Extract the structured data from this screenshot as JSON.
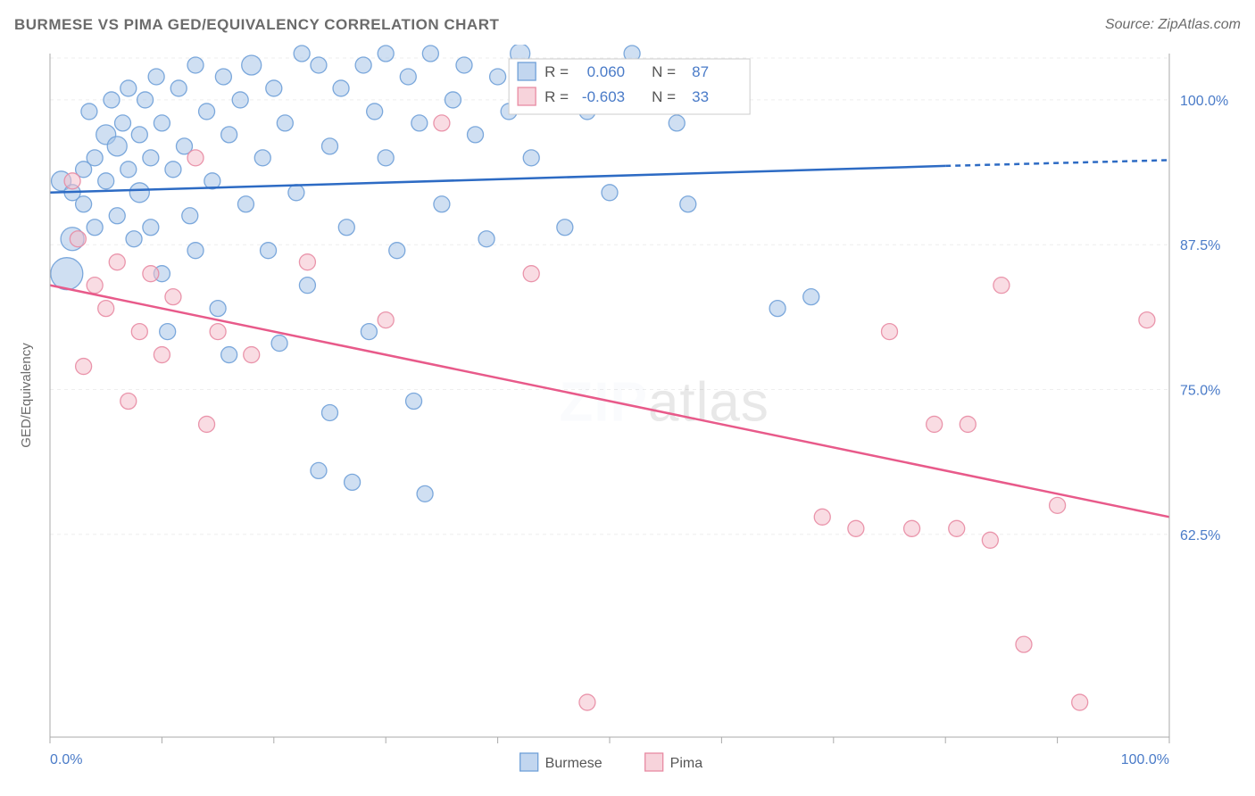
{
  "title": "BURMESE VS PIMA GED/EQUIVALENCY CORRELATION CHART",
  "source": "Source: ZipAtlas.com",
  "watermark_zip": "ZIP",
  "watermark_atlas": "atlas",
  "chart": {
    "type": "scatter",
    "ylabel": "GED/Equivalency",
    "xlim": [
      0,
      100
    ],
    "ylim": [
      45,
      104
    ],
    "xtick_labels": [
      "0.0%",
      "100.0%"
    ],
    "ytick_values": [
      62.5,
      75.0,
      87.5,
      100.0
    ],
    "ytick_labels": [
      "62.5%",
      "75.0%",
      "87.5%",
      "100.0%"
    ],
    "x_minor_ticks": [
      0,
      10,
      20,
      30,
      40,
      50,
      60,
      70,
      80,
      90,
      100
    ],
    "grid_color": "#eeeeee",
    "grid_dash": "4,4",
    "axis_color": "#aaaaaa",
    "background_color": "#ffffff",
    "series": [
      {
        "name": "Burmese",
        "color_fill": "#a8c5e8",
        "color_stroke": "#6fa0d8",
        "fill_opacity": 0.55,
        "stroke_opacity": 0.9,
        "marker_r": 9,
        "trend_color": "#2d6bc4",
        "trend_width": 2.5,
        "trend": {
          "x1": 0,
          "y1": 92,
          "x2_solid": 80,
          "y2_solid": 94.3,
          "x2": 100,
          "y2": 94.8
        },
        "r_value": "0.060",
        "n_value": "87",
        "points": [
          {
            "x": 1,
            "y": 93,
            "r": 11
          },
          {
            "x": 1.5,
            "y": 85,
            "r": 18
          },
          {
            "x": 2,
            "y": 92,
            "r": 9
          },
          {
            "x": 2,
            "y": 88,
            "r": 13
          },
          {
            "x": 3,
            "y": 94,
            "r": 9
          },
          {
            "x": 3,
            "y": 91,
            "r": 9
          },
          {
            "x": 3.5,
            "y": 99,
            "r": 9
          },
          {
            "x": 4,
            "y": 95,
            "r": 9
          },
          {
            "x": 4,
            "y": 89,
            "r": 9
          },
          {
            "x": 5,
            "y": 97,
            "r": 11
          },
          {
            "x": 5,
            "y": 93,
            "r": 9
          },
          {
            "x": 5.5,
            "y": 100,
            "r": 9
          },
          {
            "x": 6,
            "y": 96,
            "r": 11
          },
          {
            "x": 6,
            "y": 90,
            "r": 9
          },
          {
            "x": 6.5,
            "y": 98,
            "r": 9
          },
          {
            "x": 7,
            "y": 94,
            "r": 9
          },
          {
            "x": 7,
            "y": 101,
            "r": 9
          },
          {
            "x": 7.5,
            "y": 88,
            "r": 9
          },
          {
            "x": 8,
            "y": 97,
            "r": 9
          },
          {
            "x": 8,
            "y": 92,
            "r": 11
          },
          {
            "x": 8.5,
            "y": 100,
            "r": 9
          },
          {
            "x": 9,
            "y": 95,
            "r": 9
          },
          {
            "x": 9,
            "y": 89,
            "r": 9
          },
          {
            "x": 9.5,
            "y": 102,
            "r": 9
          },
          {
            "x": 10,
            "y": 98,
            "r": 9
          },
          {
            "x": 10,
            "y": 85,
            "r": 9
          },
          {
            "x": 10.5,
            "y": 80,
            "r": 9
          },
          {
            "x": 11,
            "y": 94,
            "r": 9
          },
          {
            "x": 11.5,
            "y": 101,
            "r": 9
          },
          {
            "x": 12,
            "y": 96,
            "r": 9
          },
          {
            "x": 12.5,
            "y": 90,
            "r": 9
          },
          {
            "x": 13,
            "y": 103,
            "r": 9
          },
          {
            "x": 13,
            "y": 87,
            "r": 9
          },
          {
            "x": 14,
            "y": 99,
            "r": 9
          },
          {
            "x": 14.5,
            "y": 93,
            "r": 9
          },
          {
            "x": 15,
            "y": 82,
            "r": 9
          },
          {
            "x": 15.5,
            "y": 102,
            "r": 9
          },
          {
            "x": 16,
            "y": 97,
            "r": 9
          },
          {
            "x": 16,
            "y": 78,
            "r": 9
          },
          {
            "x": 17,
            "y": 100,
            "r": 9
          },
          {
            "x": 17.5,
            "y": 91,
            "r": 9
          },
          {
            "x": 18,
            "y": 103,
            "r": 11
          },
          {
            "x": 19,
            "y": 95,
            "r": 9
          },
          {
            "x": 19.5,
            "y": 87,
            "r": 9
          },
          {
            "x": 20,
            "y": 101,
            "r": 9
          },
          {
            "x": 20.5,
            "y": 79,
            "r": 9
          },
          {
            "x": 21,
            "y": 98,
            "r": 9
          },
          {
            "x": 22,
            "y": 92,
            "r": 9
          },
          {
            "x": 22.5,
            "y": 104,
            "r": 9
          },
          {
            "x": 23,
            "y": 84,
            "r": 9
          },
          {
            "x": 24,
            "y": 103,
            "r": 9
          },
          {
            "x": 24,
            "y": 68,
            "r": 9
          },
          {
            "x": 25,
            "y": 96,
            "r": 9
          },
          {
            "x": 25,
            "y": 73,
            "r": 9
          },
          {
            "x": 26,
            "y": 101,
            "r": 9
          },
          {
            "x": 26.5,
            "y": 89,
            "r": 9
          },
          {
            "x": 27,
            "y": 67,
            "r": 9
          },
          {
            "x": 28,
            "y": 103,
            "r": 9
          },
          {
            "x": 28.5,
            "y": 80,
            "r": 9
          },
          {
            "x": 29,
            "y": 99,
            "r": 9
          },
          {
            "x": 30,
            "y": 95,
            "r": 9
          },
          {
            "x": 30,
            "y": 104,
            "r": 9
          },
          {
            "x": 31,
            "y": 87,
            "r": 9
          },
          {
            "x": 32,
            "y": 102,
            "r": 9
          },
          {
            "x": 32.5,
            "y": 74,
            "r": 9
          },
          {
            "x": 33,
            "y": 98,
            "r": 9
          },
          {
            "x": 33.5,
            "y": 66,
            "r": 9
          },
          {
            "x": 34,
            "y": 104,
            "r": 9
          },
          {
            "x": 35,
            "y": 91,
            "r": 9
          },
          {
            "x": 36,
            "y": 100,
            "r": 9
          },
          {
            "x": 37,
            "y": 103,
            "r": 9
          },
          {
            "x": 38,
            "y": 97,
            "r": 9
          },
          {
            "x": 39,
            "y": 88,
            "r": 9
          },
          {
            "x": 40,
            "y": 102,
            "r": 9
          },
          {
            "x": 41,
            "y": 99,
            "r": 9
          },
          {
            "x": 42,
            "y": 104,
            "r": 11
          },
          {
            "x": 43,
            "y": 95,
            "r": 9
          },
          {
            "x": 45,
            "y": 101,
            "r": 9
          },
          {
            "x": 46,
            "y": 89,
            "r": 9
          },
          {
            "x": 48,
            "y": 99,
            "r": 9
          },
          {
            "x": 50,
            "y": 92,
            "r": 9
          },
          {
            "x": 52,
            "y": 104,
            "r": 9
          },
          {
            "x": 54,
            "y": 102,
            "r": 9
          },
          {
            "x": 56,
            "y": 98,
            "r": 9
          },
          {
            "x": 57,
            "y": 91,
            "r": 9
          },
          {
            "x": 65,
            "y": 82,
            "r": 9
          },
          {
            "x": 68,
            "y": 83,
            "r": 9
          }
        ]
      },
      {
        "name": "Pima",
        "color_fill": "#f4c0cc",
        "color_stroke": "#e88ba3",
        "fill_opacity": 0.55,
        "stroke_opacity": 0.9,
        "marker_r": 9,
        "trend_color": "#e85a8a",
        "trend_width": 2.5,
        "trend": {
          "x1": 0,
          "y1": 84,
          "x2": 100,
          "y2": 64
        },
        "r_value": "-0.603",
        "n_value": "33",
        "points": [
          {
            "x": 2,
            "y": 93,
            "r": 9
          },
          {
            "x": 2.5,
            "y": 88,
            "r": 9
          },
          {
            "x": 3,
            "y": 77,
            "r": 9
          },
          {
            "x": 4,
            "y": 84,
            "r": 9
          },
          {
            "x": 5,
            "y": 82,
            "r": 9
          },
          {
            "x": 6,
            "y": 86,
            "r": 9
          },
          {
            "x": 7,
            "y": 74,
            "r": 9
          },
          {
            "x": 8,
            "y": 80,
            "r": 9
          },
          {
            "x": 9,
            "y": 85,
            "r": 9
          },
          {
            "x": 10,
            "y": 78,
            "r": 9
          },
          {
            "x": 11,
            "y": 83,
            "r": 9
          },
          {
            "x": 13,
            "y": 95,
            "r": 9
          },
          {
            "x": 14,
            "y": 72,
            "r": 9
          },
          {
            "x": 15,
            "y": 80,
            "r": 9
          },
          {
            "x": 18,
            "y": 78,
            "r": 9
          },
          {
            "x": 23,
            "y": 86,
            "r": 9
          },
          {
            "x": 30,
            "y": 81,
            "r": 9
          },
          {
            "x": 35,
            "y": 98,
            "r": 9
          },
          {
            "x": 43,
            "y": 85,
            "r": 9
          },
          {
            "x": 48,
            "y": 48,
            "r": 9
          },
          {
            "x": 69,
            "y": 64,
            "r": 9
          },
          {
            "x": 72,
            "y": 63,
            "r": 9
          },
          {
            "x": 75,
            "y": 80,
            "r": 9
          },
          {
            "x": 77,
            "y": 63,
            "r": 9
          },
          {
            "x": 79,
            "y": 72,
            "r": 9
          },
          {
            "x": 81,
            "y": 63,
            "r": 9
          },
          {
            "x": 82,
            "y": 72,
            "r": 9
          },
          {
            "x": 84,
            "y": 62,
            "r": 9
          },
          {
            "x": 85,
            "y": 84,
            "r": 9
          },
          {
            "x": 87,
            "y": 53,
            "r": 9
          },
          {
            "x": 90,
            "y": 65,
            "r": 9
          },
          {
            "x": 92,
            "y": 48,
            "r": 9
          },
          {
            "x": 98,
            "y": 81,
            "r": 9
          }
        ]
      }
    ],
    "legend_top": {
      "r_label": "R =",
      "n_label": "N ="
    },
    "legend_bottom": {
      "items": [
        "Burmese",
        "Pima"
      ]
    }
  }
}
